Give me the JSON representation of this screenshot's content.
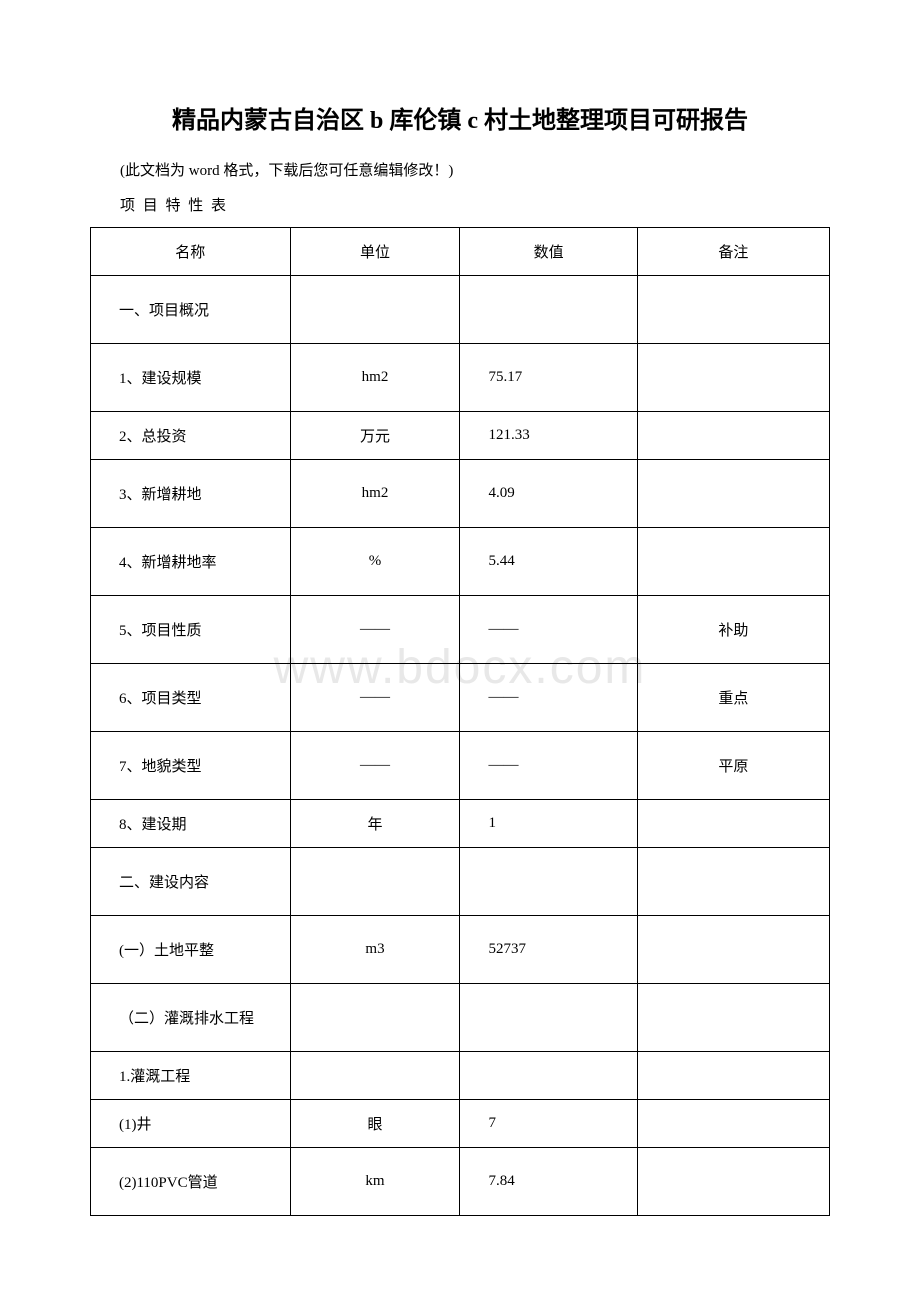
{
  "title": "精品内蒙古自治区 b 库伦镇 c 村土地整理项目可研报告",
  "subtitle": "(此文档为 word 格式，下载后您可任意编辑修改！)",
  "section_label": "项 目 特 性 表",
  "watermark": "www.bdocx.com",
  "table": {
    "headers": [
      "名称",
      "单位",
      "数值",
      "备注"
    ],
    "rows": [
      {
        "name": "一、项目概况",
        "unit": "",
        "value": "",
        "note": "",
        "tall": true
      },
      {
        "name": "1、建设规模",
        "unit": "hm2",
        "value": "75.17",
        "note": "",
        "tall": true
      },
      {
        "name": "2、总投资",
        "unit": "万元",
        "value": "121.33",
        "note": "",
        "tall": false
      },
      {
        "name": "3、新增耕地",
        "unit": "hm2",
        "value": "4.09",
        "note": "",
        "tall": true
      },
      {
        "name": "4、新增耕地率",
        "unit": "%",
        "value": "5.44",
        "note": "",
        "tall": true
      },
      {
        "name": "5、项目性质",
        "unit": "——",
        "value": "——",
        "note": "补助",
        "tall": true
      },
      {
        "name": "6、项目类型",
        "unit": "——",
        "value": "——",
        "note": "重点",
        "tall": true
      },
      {
        "name": "7、地貌类型",
        "unit": "——",
        "value": "——",
        "note": "平原",
        "tall": true
      },
      {
        "name": "8、建设期",
        "unit": "年",
        "value": "1",
        "note": "",
        "tall": false
      },
      {
        "name": "二、建设内容",
        "unit": "",
        "value": "",
        "note": "",
        "tall": true
      },
      {
        "name": "(一）土地平整",
        "unit": "m3",
        "value": "52737",
        "note": "",
        "tall": true
      },
      {
        "name": "（二）灌溉排水工程",
        "unit": "",
        "value": "",
        "note": "",
        "tall": true
      },
      {
        "name": "1.灌溉工程",
        "unit": "",
        "value": "",
        "note": "",
        "tall": false
      },
      {
        "name": "(1)井",
        "unit": "眼",
        "value": "7",
        "note": "",
        "tall": false
      },
      {
        "name": "(2)110PVC管道",
        "unit": "km",
        "value": "7.84",
        "note": "",
        "tall": true
      }
    ]
  }
}
